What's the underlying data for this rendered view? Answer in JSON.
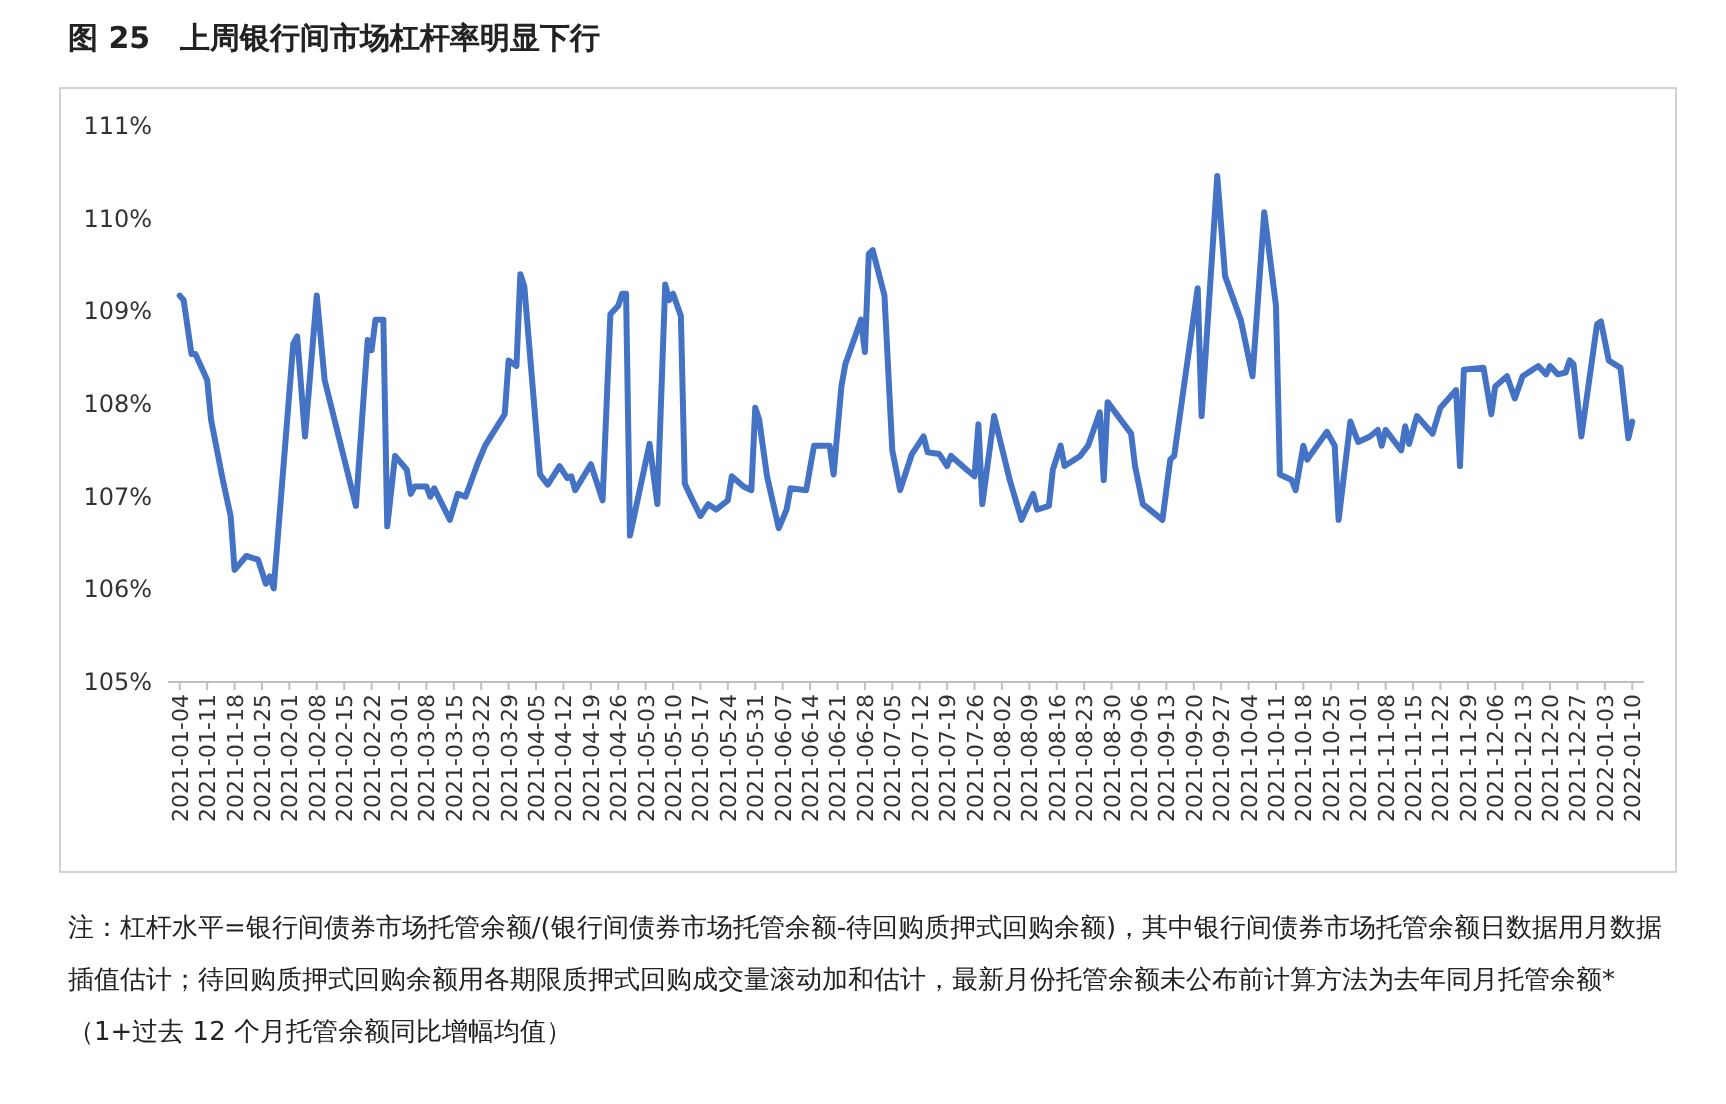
{
  "chart_data": {
    "type": "line",
    "title": "图 25　上周银行间市场杠杆率明显下行",
    "annotations": [
      "注：杠杆水平=银行间债券市场托管余额/(银行间债券市场托管余额-待回购质押式回购余额)，其中银行间债券市场托管余额日数据用月数据插值估计；待回购质押式回购余额用各期限质押式回购成交量滚动加和估计，最新月份托管余额未公布前计算方法为去年同月托管余额*（1+过去 12 个月托管余额同比增幅均值）"
    ],
    "color": "#4472c4",
    "x": [
      "2021-01-04",
      "2021-01-05",
      "2021-01-07",
      "2021-01-08",
      "2021-01-11",
      "2021-01-12",
      "2021-01-15",
      "2021-01-17",
      "2021-01-18",
      "2021-01-21",
      "2021-01-24",
      "2021-01-26",
      "2021-01-27",
      "2021-01-28",
      "2021-02-02",
      "2021-02-03",
      "2021-02-05",
      "2021-02-08",
      "2021-02-10",
      "2021-02-18",
      "2021-02-21",
      "2021-02-22",
      "2021-02-23",
      "2021-02-25",
      "2021-02-26",
      "2021-02-28",
      "2021-03-03",
      "2021-03-04",
      "2021-03-05",
      "2021-03-08",
      "2021-03-09",
      "2021-03-10",
      "2021-03-14",
      "2021-03-16",
      "2021-03-18",
      "2021-03-21",
      "2021-03-23",
      "2021-03-28",
      "2021-03-29",
      "2021-03-31",
      "2021-04-01",
      "2021-04-02",
      "2021-04-06",
      "2021-04-08",
      "2021-04-11",
      "2021-04-13",
      "2021-04-14",
      "2021-04-15",
      "2021-04-19",
      "2021-04-22",
      "2021-04-24",
      "2021-04-26",
      "2021-04-27",
      "2021-04-28",
      "2021-04-29",
      "2021-05-04",
      "2021-05-06",
      "2021-05-08",
      "2021-05-09",
      "2021-05-10",
      "2021-05-12",
      "2021-05-13",
      "2021-05-15",
      "2021-05-17",
      "2021-05-19",
      "2021-05-21",
      "2021-05-24",
      "2021-05-25",
      "2021-05-28",
      "2021-05-30",
      "2021-05-31",
      "2021-06-01",
      "2021-06-03",
      "2021-06-06",
      "2021-06-08",
      "2021-06-09",
      "2021-06-13",
      "2021-06-15",
      "2021-06-19",
      "2021-06-20",
      "2021-06-22",
      "2021-06-23",
      "2021-06-27",
      "2021-06-28",
      "2021-06-29",
      "2021-06-30",
      "2021-07-03",
      "2021-07-05",
      "2021-07-07",
      "2021-07-10",
      "2021-07-13",
      "2021-07-14",
      "2021-07-17",
      "2021-07-19",
      "2021-07-20",
      "2021-07-24",
      "2021-07-26",
      "2021-07-27",
      "2021-07-28",
      "2021-07-31",
      "2021-08-04",
      "2021-08-07",
      "2021-08-10",
      "2021-08-11",
      "2021-08-14",
      "2021-08-15",
      "2021-08-17",
      "2021-08-18",
      "2021-08-22",
      "2021-08-24",
      "2021-08-27",
      "2021-08-28",
      "2021-08-29",
      "2021-09-04",
      "2021-09-05",
      "2021-09-07",
      "2021-09-12",
      "2021-09-14",
      "2021-09-15",
      "2021-09-21",
      "2021-09-22",
      "2021-09-26",
      "2021-09-28",
      "2021-10-02",
      "2021-10-05",
      "2021-10-08",
      "2021-10-11",
      "2021-10-12",
      "2021-10-15",
      "2021-10-16",
      "2021-10-18",
      "2021-10-19",
      "2021-10-24",
      "2021-10-26",
      "2021-10-27",
      "2021-10-30",
      "2021-11-01",
      "2021-11-04",
      "2021-11-06",
      "2021-11-07",
      "2021-11-08",
      "2021-11-12",
      "2021-11-13",
      "2021-11-14",
      "2021-11-16",
      "2021-11-20",
      "2021-11-22",
      "2021-11-26",
      "2021-11-27",
      "2021-11-28",
      "2021-12-03",
      "2021-12-05",
      "2021-12-06",
      "2021-12-09",
      "2021-12-11",
      "2021-12-13",
      "2021-12-17",
      "2021-12-19",
      "2021-12-20",
      "2021-12-22",
      "2021-12-24",
      "2021-12-25",
      "2021-12-26",
      "2021-12-28",
      "2022-01-01",
      "2022-01-02",
      "2022-01-04",
      "2022-01-07",
      "2022-01-09",
      "2022-01-10"
    ],
    "values": [
      109.17,
      109.12,
      108.54,
      108.54,
      108.26,
      107.83,
      107.18,
      106.79,
      106.21,
      106.36,
      106.32,
      106.06,
      106.14,
      106.01,
      108.65,
      108.73,
      107.65,
      109.17,
      108.26,
      106.9,
      108.69,
      108.58,
      108.91,
      108.91,
      106.68,
      107.44,
      107.29,
      107.03,
      107.11,
      107.11,
      107.0,
      107.09,
      106.75,
      107.03,
      107.0,
      107.35,
      107.55,
      107.89,
      108.47,
      108.41,
      109.4,
      109.27,
      107.24,
      107.13,
      107.33,
      107.2,
      107.22,
      107.07,
      107.35,
      106.96,
      108.97,
      109.06,
      109.19,
      109.19,
      106.58,
      107.57,
      106.92,
      109.29,
      109.12,
      109.19,
      108.95,
      107.14,
      106.96,
      106.79,
      106.92,
      106.86,
      106.96,
      107.22,
      107.11,
      107.07,
      107.96,
      107.83,
      107.22,
      106.66,
      106.86,
      107.09,
      107.07,
      107.55,
      107.55,
      107.24,
      108.19,
      108.43,
      108.91,
      108.56,
      109.62,
      109.66,
      109.17,
      107.5,
      107.07,
      107.46,
      107.65,
      107.48,
      107.46,
      107.33,
      107.44,
      107.29,
      107.22,
      107.78,
      106.92,
      107.87,
      107.18,
      106.75,
      107.03,
      106.86,
      106.9,
      107.29,
      107.55,
      107.33,
      107.44,
      107.55,
      107.91,
      107.18,
      108.02,
      107.68,
      107.33,
      106.92,
      106.75,
      107.4,
      107.44,
      109.25,
      107.87,
      110.46,
      109.38,
      108.91,
      108.3,
      110.07,
      109.06,
      107.24,
      107.18,
      107.07,
      107.55,
      107.4,
      107.7,
      107.55,
      106.75,
      107.81,
      107.59,
      107.65,
      107.72,
      107.55,
      107.72,
      107.5,
      107.76,
      107.57,
      107.87,
      107.68,
      107.96,
      108.15,
      107.33,
      108.37,
      108.39,
      107.89,
      108.19,
      108.3,
      108.06,
      108.3,
      108.41,
      108.32,
      108.41,
      108.32,
      108.34,
      108.47,
      108.43,
      107.65,
      108.86,
      108.89,
      108.47,
      108.39,
      107.63,
      107.81
    ],
    "xlim": [
      "2021-01-01",
      "2022-01-13"
    ],
    "xticks": [
      "2021-01-04",
      "2021-01-11",
      "2021-01-18",
      "2021-01-25",
      "2021-02-01",
      "2021-02-08",
      "2021-02-15",
      "2021-02-22",
      "2021-03-01",
      "2021-03-08",
      "2021-03-15",
      "2021-03-22",
      "2021-03-29",
      "2021-04-05",
      "2021-04-12",
      "2021-04-19",
      "2021-04-26",
      "2021-05-03",
      "2021-05-10",
      "2021-05-17",
      "2021-05-24",
      "2021-05-31",
      "2021-06-07",
      "2021-06-14",
      "2021-06-21",
      "2021-06-28",
      "2021-07-05",
      "2021-07-12",
      "2021-07-19",
      "2021-07-26",
      "2021-08-02",
      "2021-08-09",
      "2021-08-16",
      "2021-08-23",
      "2021-08-30",
      "2021-09-06",
      "2021-09-13",
      "2021-09-20",
      "2021-09-27",
      "2021-10-04",
      "2021-10-11",
      "2021-10-18",
      "2021-10-25",
      "2021-11-01",
      "2021-11-08",
      "2021-11-15",
      "2021-11-22",
      "2021-11-29",
      "2021-12-06",
      "2021-12-13",
      "2021-12-20",
      "2021-12-27",
      "2022-01-03",
      "2022-01-10"
    ],
    "ylim": [
      105,
      111
    ],
    "yticks": [
      {
        "value": 105,
        "label": "105%"
      },
      {
        "value": 106,
        "label": "106%"
      },
      {
        "value": 107,
        "label": "107%"
      },
      {
        "value": 108,
        "label": "108%"
      },
      {
        "value": 109,
        "label": "109%"
      },
      {
        "value": 110,
        "label": "110%"
      },
      {
        "value": 111,
        "label": "111%"
      }
    ],
    "grid": false
  }
}
